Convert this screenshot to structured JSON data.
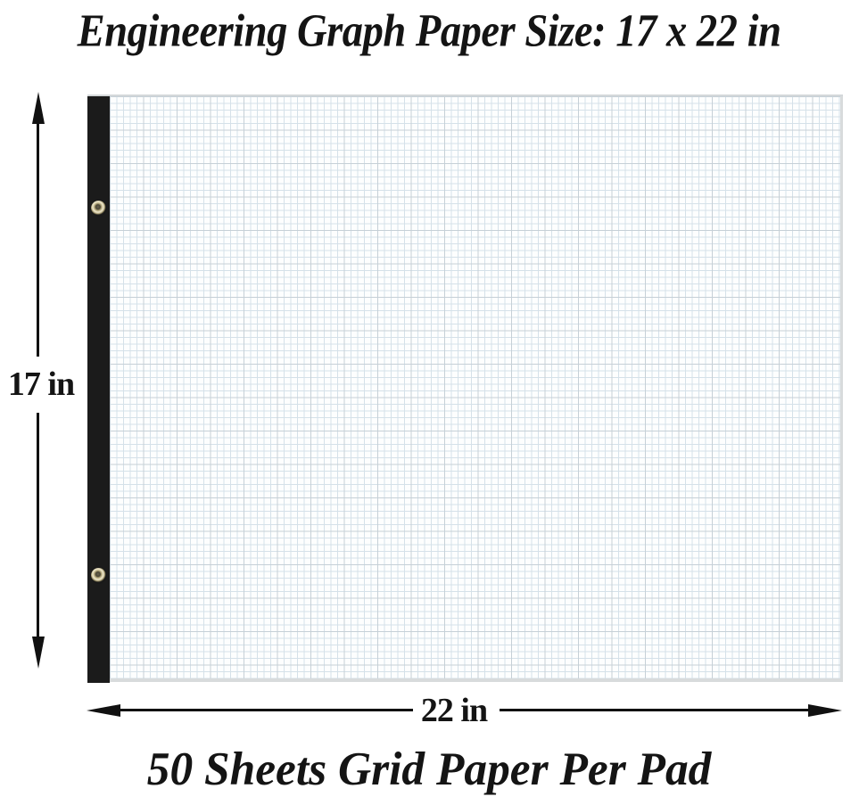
{
  "title": "Engineering Graph Paper Size: 17 x 22 in",
  "footer": "50 Sheets Grid Paper Per Pad",
  "dimension_labels": {
    "height": "17 in",
    "width": "22 in"
  },
  "colors": {
    "arrow": "#111111",
    "binding": "#1b1b1b",
    "paper": "#fdfefe",
    "grid-minor": "#d5e1e9",
    "grid-major": "#c6d0d7",
    "paper-edge": "#d8dbdc",
    "pad-top-edge": "#d4d8da",
    "grommet-brass": "#d9cfa6",
    "text": "#141414",
    "background": "#ffffff"
  }
}
